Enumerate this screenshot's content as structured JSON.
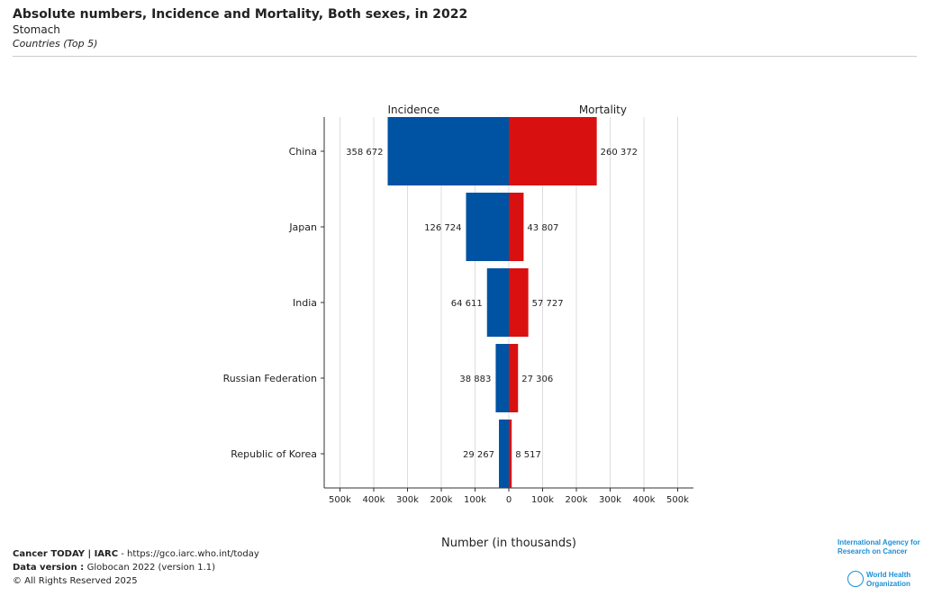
{
  "title": "Absolute numbers, Incidence and Mortality, Both sexes, in 2022",
  "subtitle": "Stomach",
  "caption": "Countries (Top 5)",
  "chart_data": {
    "type": "bar",
    "orientation": "horizontal-diverging",
    "categories": [
      "China",
      "Japan",
      "India",
      "Russian Federation",
      "Republic of Korea"
    ],
    "series": [
      {
        "name": "Incidence",
        "color": "#0052a2",
        "values": [
          358672,
          126724,
          64611,
          38883,
          29267
        ],
        "labels": [
          "358 672",
          "126 724",
          "64 611",
          "38 883",
          "29 267"
        ]
      },
      {
        "name": "Mortality",
        "color": "#d91010",
        "values": [
          260372,
          43807,
          57727,
          27306,
          8517
        ],
        "labels": [
          "260 372",
          "43 807",
          "57 727",
          "27 306",
          "8 517"
        ]
      }
    ],
    "xlabel": "Number (in thousands)",
    "xlim": [
      -500000,
      500000
    ],
    "xticks": [
      "500k",
      "400k",
      "300k",
      "200k",
      "100k",
      "0",
      "100k",
      "200k",
      "300k",
      "400k",
      "500k"
    ],
    "grid": "vertical"
  },
  "footer": {
    "line1_bold": "Cancer TODAY | IARC",
    "line1_rest": " - https://gco.iarc.who.int/today",
    "line2_bold": "Data version : ",
    "line2_rest": "Globocan 2022 (version 1.1)",
    "line3": "© All Rights Reserved 2025"
  },
  "logos": {
    "iarc": "International Agency for Research on Cancer",
    "who": "World Health Organization"
  }
}
